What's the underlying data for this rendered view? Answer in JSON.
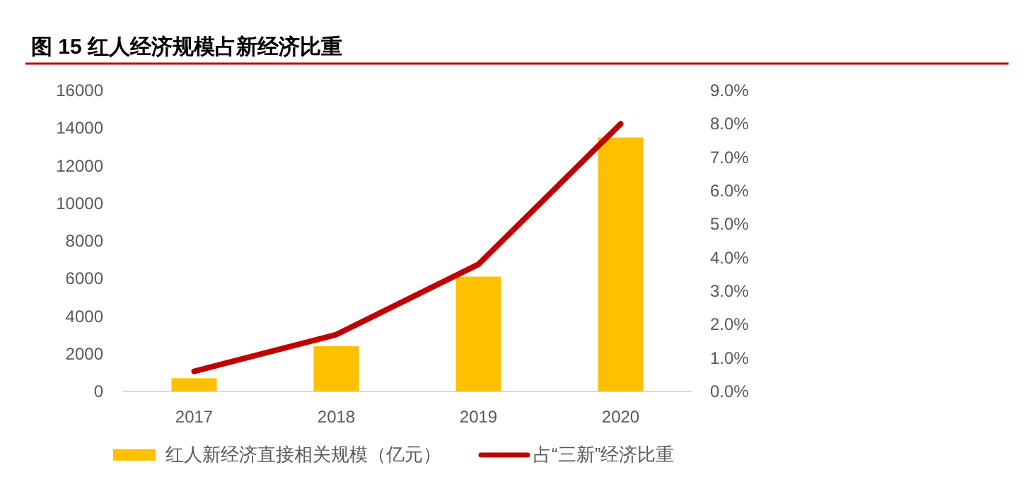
{
  "chart_data": {
    "type": "bar",
    "title": "图 15  红人经济规模占新经济比重",
    "categories": [
      "2017",
      "2018",
      "2019",
      "2020"
    ],
    "series": [
      {
        "name": "红人新经济直接相关规模（亿元）",
        "color": "#ffc000",
        "values": [
          700,
          2400,
          6100,
          13500
        ]
      },
      {
        "name": "占“三新”经济比重",
        "type": "line",
        "axis": "y2",
        "color": "#c00000",
        "values": [
          0.6,
          1.7,
          3.8,
          8.0
        ]
      }
    ],
    "ylim": [
      0,
      16000
    ],
    "yticks": [
      0,
      2000,
      4000,
      6000,
      8000,
      10000,
      12000,
      14000,
      16000
    ],
    "y2lim": [
      0,
      9
    ],
    "y2ticks": [
      {
        "value": 0,
        "label": "0.0%"
      },
      {
        "value": 1,
        "label": "1.0%"
      },
      {
        "value": 2,
        "label": "2.0%"
      },
      {
        "value": 3,
        "label": "3.0%"
      },
      {
        "value": 4,
        "label": "4.0%"
      },
      {
        "value": 5,
        "label": "5.0%"
      },
      {
        "value": 6,
        "label": "6.0%"
      },
      {
        "value": 7,
        "label": "7.0%"
      },
      {
        "value": 8,
        "label": "8.0%"
      },
      {
        "value": 9,
        "label": "9.0%"
      }
    ],
    "grid": false,
    "legend": "bottom"
  }
}
